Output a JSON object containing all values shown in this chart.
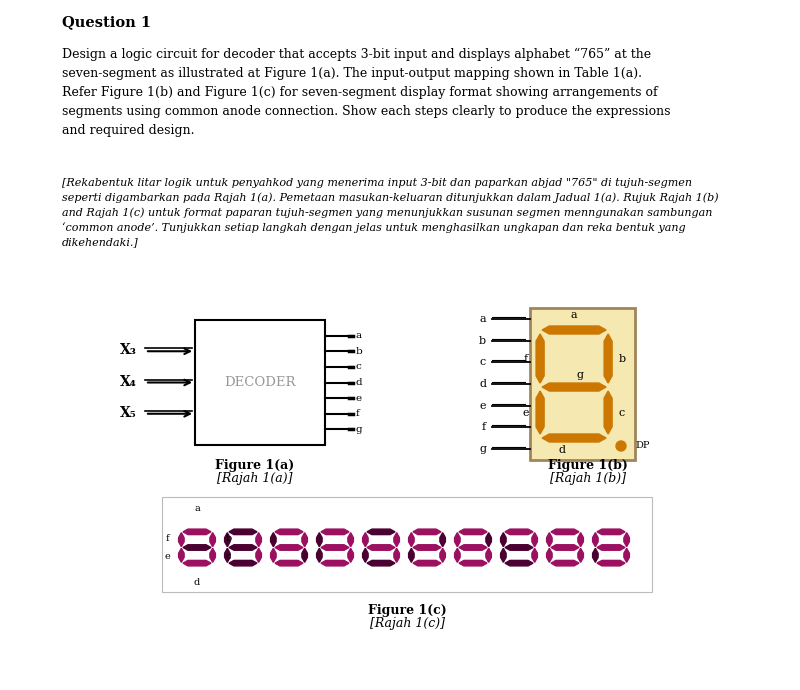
{
  "title": "Question 1",
  "main_text_en": "Design a logic circuit for decoder that accepts 3-bit input and displays alphabet “765” at the\nseven-segment as illustrated at Figure 1(a). The input-output mapping shown in Table 1(a).\nRefer Figure 1(b) and Figure 1(c) for seven-segment display format showing arrangements of\nsegments using common anode connection. Show each steps clearly to produce the expressions\nand required design.",
  "main_text_ms": "[Rekabentuk litar logik untuk penyahkod yang menerima input 3-bit dan paparkan abjad \"765\" di tujuh-segmen\nseperti digambarkan pada Rajah 1(a). Pemetaan masukan-keluaran ditunjukkan dalam Jadual 1(a). Rujuk Rajah 1(b)\nand Rajah 1(c) untuk format paparan tujuh-segmen yang menunjukkan susunan segmen menngunakan sambungan\n‘common anode’. Tunjukkan setiap langkah dengan jelas untuk menghasilkan ungkapan dan reka bentuk yang\ndikehendaki.]",
  "decoder_label": "DECODER",
  "inputs": [
    "X₃",
    "X₄",
    "X₅"
  ],
  "outputs": [
    "a",
    "b",
    "c",
    "d",
    "e",
    "f",
    "g"
  ],
  "seg_color_on": "#9B1060",
  "seg_color_off": "#4A0030",
  "fig1b_display_bg": "#F5E8B0",
  "fig1b_seg_color": "#CC7700",
  "fig1b_border_color": "#A0855A"
}
